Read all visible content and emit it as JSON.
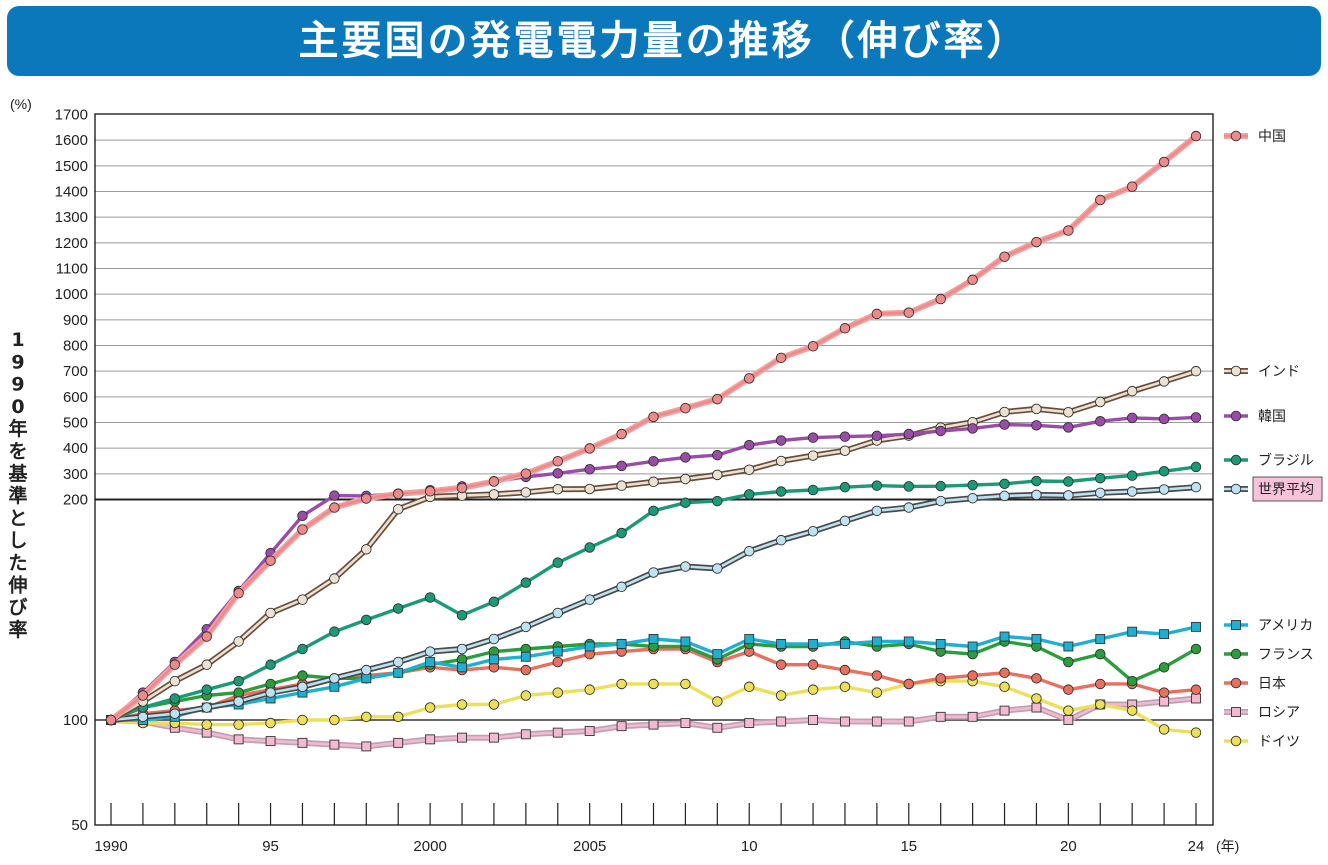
{
  "title": "主要国の発電電力量の推移（伸び率）",
  "chart_data": {
    "type": "line",
    "title": "主要国の発電電力量の推移（伸び率）",
    "ylabel": "1990年を基準とした伸び率",
    "y_unit": "(%)",
    "x_unit": "(年)",
    "y_scale": "broken: linear 200-1700, log 50-200",
    "ylim": [
      50,
      1700
    ],
    "y_ticks": [
      "1700",
      "1600",
      "1500",
      "1400",
      "1300",
      "1200",
      "1100",
      "1000",
      "900",
      "800",
      "700",
      "600",
      "500",
      "400",
      "300",
      "200",
      "100",
      "50"
    ],
    "x_ticks": [
      {
        "year": 1990,
        "label": "1990"
      },
      {
        "year": 1995,
        "label": "95"
      },
      {
        "year": 2000,
        "label": "2000"
      },
      {
        "year": 2005,
        "label": "2005"
      },
      {
        "year": 2010,
        "label": "10"
      },
      {
        "year": 2015,
        "label": "15"
      },
      {
        "year": 2020,
        "label": "20"
      },
      {
        "year": 2024,
        "label": "24"
      }
    ],
    "grid": true,
    "legend_position": "right",
    "x": [
      1990,
      1991,
      1992,
      1993,
      1994,
      1995,
      1996,
      1997,
      1998,
      1999,
      2000,
      2001,
      2002,
      2003,
      2004,
      2005,
      2006,
      2007,
      2008,
      2009,
      2010,
      2011,
      2012,
      2013,
      2014,
      2015,
      2016,
      2017,
      2018,
      2019,
      2020,
      2021,
      2022,
      2023,
      2024
    ],
    "series": [
      {
        "name": "中国",
        "color": "#ef8a8a",
        "line": "#f2a0a0",
        "marker": "circle",
        "highlight": false,
        "values": [
          100,
          108,
          119,
          130,
          149,
          165,
          182,
          195,
          204,
          222,
          232,
          245,
          270,
          301,
          349,
          399,
          455,
          522,
          556,
          591,
          672,
          752,
          797,
          867,
          923,
          928,
          981,
          1056,
          1146,
          1203,
          1248,
          1367,
          1419,
          1515,
          1616
        ]
      },
      {
        "name": "インド",
        "color": "#ede2d2",
        "line": "#6a4e3d",
        "marker": "circle",
        "highlight": false,
        "values": [
          100,
          106,
          113,
          119,
          128,
          140,
          146,
          156,
          171,
          194,
          210,
          215,
          220,
          228,
          240,
          241,
          254,
          269,
          280,
          296,
          316,
          350,
          371,
          390,
          430,
          449,
          480,
          501,
          541,
          553,
          540,
          580,
          622,
          660,
          700
        ]
      },
      {
        "name": "韓国",
        "color": "#9a4ca8",
        "line": "#9a4ca8",
        "marker": "circle",
        "highlight": false,
        "values": [
          100,
          109,
          120,
          133,
          150,
          169,
          190,
          215,
          214,
          223,
          236,
          251,
          271,
          288,
          302,
          318,
          331,
          349,
          364,
          373,
          412,
          430,
          441,
          445,
          448,
          455,
          467,
          477,
          492,
          489,
          481,
          505,
          518,
          514,
          520
        ]
      },
      {
        "name": "ブラジル",
        "color": "#1a9a76",
        "line": "#1a9a76",
        "marker": "circle",
        "highlight": false,
        "values": [
          100,
          104,
          107,
          110,
          113,
          119,
          125,
          132,
          137,
          142,
          147,
          139,
          145,
          154,
          164,
          172,
          180,
          193,
          198,
          199,
          220,
          231,
          237,
          248,
          254,
          251,
          252,
          256,
          261,
          272,
          270,
          283,
          293,
          310,
          327
        ]
      },
      {
        "name": "世界平均",
        "color": "#bde3f1",
        "line": "#4a4a4a",
        "marker": "circle",
        "highlight": true,
        "values": [
          100,
          101,
          102,
          104,
          106,
          109,
          111,
          114,
          117,
          120,
          124,
          125,
          129,
          134,
          140,
          146,
          152,
          159,
          162,
          161,
          170,
          176,
          181,
          187,
          193,
          195,
          199,
          205,
          214,
          218,
          216,
          226,
          231,
          239,
          248
        ]
      },
      {
        "name": "アメリカ",
        "color": "#1fb0d1",
        "line": "#1fb0d1",
        "marker": "square",
        "highlight": false,
        "values": [
          100,
          100,
          101,
          104,
          105,
          107,
          109,
          111,
          114,
          116,
          120,
          118,
          121,
          122,
          124,
          126,
          127,
          129,
          128,
          123,
          129,
          127,
          127,
          127,
          128,
          128,
          127,
          126,
          130,
          129,
          126,
          129,
          132,
          131,
          134
        ]
      },
      {
        "name": "フランス",
        "color": "#2a9d3c",
        "line": "#2a9d3c",
        "marker": "circle",
        "highlight": false,
        "values": [
          100,
          104,
          106,
          108,
          109,
          112,
          115,
          114,
          114,
          116,
          119,
          121,
          124,
          125,
          126,
          127,
          127,
          126,
          126,
          121,
          127,
          126,
          126,
          128,
          126,
          127,
          124,
          123,
          128,
          126,
          120,
          123,
          113,
          118,
          125
        ]
      },
      {
        "name": "日本",
        "color": "#e8705e",
        "line": "#e8705e",
        "marker": "circle",
        "highlight": false,
        "values": [
          100,
          102,
          103,
          104,
          108,
          110,
          112,
          114,
          115,
          116,
          118,
          117,
          118,
          117,
          120,
          123,
          124,
          125,
          125,
          120,
          124,
          119,
          119,
          117,
          115,
          112,
          114,
          115,
          116,
          114,
          110,
          112,
          112,
          109,
          110
        ]
      },
      {
        "name": "ロシア",
        "color": "#f3b9d1",
        "line": "#c0a1b4",
        "marker": "square",
        "highlight": false,
        "values": [
          100,
          99,
          95,
          92,
          88,
          87,
          86,
          85,
          84,
          86,
          88,
          89,
          89,
          91,
          92,
          93,
          96,
          97,
          98,
          95,
          98,
          99,
          100,
          99,
          99,
          99,
          101,
          101,
          103,
          104,
          100,
          105,
          105,
          106,
          107
        ]
      },
      {
        "name": "ドイツ",
        "color": "#ece05a",
        "line": "#ece05a",
        "marker": "circle",
        "highlight": false,
        "values": [
          100,
          98,
          98,
          97,
          97,
          98,
          100,
          100,
          101,
          101,
          104,
          105,
          105,
          108,
          109,
          110,
          112,
          112,
          112,
          106,
          111,
          108,
          110,
          111,
          109,
          112,
          113,
          113,
          111,
          107,
          103,
          105,
          103,
          94,
          92
        ]
      }
    ]
  }
}
